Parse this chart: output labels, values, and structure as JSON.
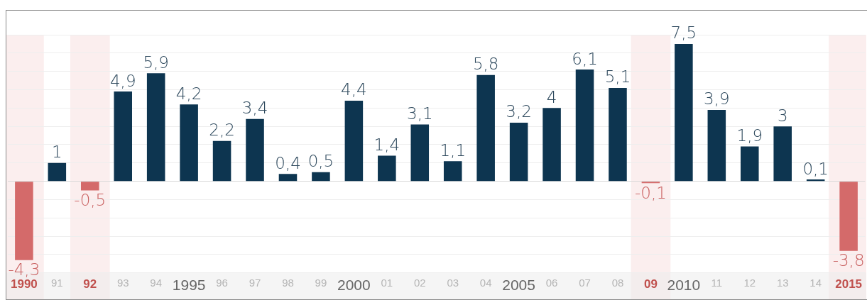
{
  "chart_data": {
    "type": "bar",
    "categories": [
      "1990",
      "91",
      "92",
      "93",
      "94",
      "1995",
      "96",
      "97",
      "98",
      "99",
      "2000",
      "01",
      "02",
      "03",
      "04",
      "2005",
      "06",
      "07",
      "08",
      "09",
      "2010",
      "11",
      "12",
      "13",
      "14",
      "2015"
    ],
    "values": [
      -4.3,
      1,
      -0.5,
      4.9,
      5.9,
      4.2,
      2.2,
      3.4,
      0.4,
      0.5,
      4.4,
      1.4,
      3.1,
      1.1,
      5.8,
      3.2,
      4,
      6.1,
      5.1,
      -0.1,
      7.5,
      3.9,
      1.9,
      3,
      0.1,
      -3.8
    ],
    "colors": [
      "#d46a6a",
      "#0d3550",
      "#d46a6a",
      "#0d3550",
      "#0d3550",
      "#0d3550",
      "#0d3550",
      "#0d3550",
      "#0d3550",
      "#0d3550",
      "#0d3550",
      "#0d3550",
      "#0d3550",
      "#0d3550",
      "#0d3550",
      "#0d3550",
      "#0d3550",
      "#0d3550",
      "#0d3550",
      "#d46a6a",
      "#0d3550",
      "#0d3550",
      "#0d3550",
      "#0d3550",
      "#0d3550",
      "#d46a6a"
    ],
    "value_labels": [
      "-4,3",
      "1",
      "-0,5",
      "4,9",
      "5,9",
      "4,2",
      "2,2",
      "3,4",
      "0,4",
      "0,5",
      "4,4",
      "1,4",
      "3,1",
      "1,1",
      "5,8",
      "3,2",
      "4",
      "6,1",
      "5,1",
      "-0,1",
      "7,5",
      "3,9",
      "1,9",
      "3",
      "0,1",
      "-3,8"
    ],
    "bands": [
      {
        "axis": "x",
        "from": "1990",
        "to": "1990",
        "color": "#fbeeee"
      },
      {
        "axis": "x",
        "from": "92",
        "to": "92",
        "color": "#fbeeee"
      },
      {
        "axis": "x",
        "from": "09",
        "to": "09",
        "color": "#fbeeee"
      },
      {
        "axis": "x",
        "from": "2015",
        "to": "2015",
        "color": "#fbeeee"
      }
    ],
    "grid": "y",
    "tick_labels": "x",
    "legend": false
  }
}
